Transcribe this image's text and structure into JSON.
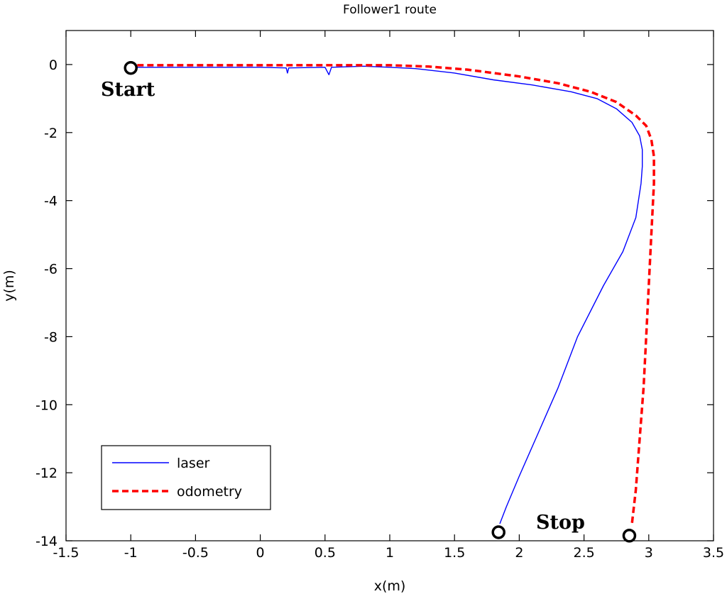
{
  "chart_data": {
    "type": "line",
    "title": "Follower1 route",
    "xlabel": "x(m)",
    "ylabel": "y(m)",
    "xlim": [
      -1.5,
      3.5
    ],
    "ylim": [
      -14,
      1
    ],
    "xticks": [
      -1.5,
      -1,
      -0.5,
      0,
      0.5,
      1,
      1.5,
      2,
      2.5,
      3,
      3.5
    ],
    "xtick_labels": [
      "-1.5",
      "-1",
      "-0.5",
      "0",
      "0.5",
      "1",
      "1.5",
      "2",
      "2.5",
      "3",
      "3.5"
    ],
    "yticks": [
      0,
      -2,
      -4,
      -6,
      -8,
      -10,
      -12,
      -14
    ],
    "ytick_labels": [
      "0",
      "-2",
      "-4",
      "-6",
      "-8",
      "-10",
      "-12",
      "-14"
    ],
    "grid": false,
    "legend": {
      "position": "bottom-left",
      "entries": [
        "laser",
        "odometry"
      ]
    },
    "series": [
      {
        "name": "laser",
        "color": "#0000ff",
        "style": "solid",
        "x": [
          -0.95,
          -0.5,
          0.0,
          0.2,
          0.21,
          0.22,
          0.5,
          0.53,
          0.55,
          0.8,
          1.0,
          1.2,
          1.5,
          1.8,
          2.1,
          2.4,
          2.6,
          2.75,
          2.87,
          2.93,
          2.95,
          2.95,
          2.94,
          2.9,
          2.8,
          2.65,
          2.45,
          2.3,
          2.15,
          2.0,
          1.9,
          1.85
        ],
        "y": [
          -0.08,
          -0.08,
          -0.08,
          -0.1,
          -0.25,
          -0.1,
          -0.08,
          -0.3,
          -0.08,
          -0.05,
          -0.08,
          -0.12,
          -0.25,
          -0.45,
          -0.6,
          -0.8,
          -1.0,
          -1.3,
          -1.7,
          -2.1,
          -2.5,
          -3.0,
          -3.5,
          -4.5,
          -5.5,
          -6.5,
          -8.0,
          -9.5,
          -10.8,
          -12.1,
          -13.0,
          -13.5
        ]
      },
      {
        "name": "odometry",
        "color": "#ff0000",
        "style": "dashed",
        "x": [
          -0.95,
          -0.5,
          0.0,
          0.5,
          1.0,
          1.3,
          1.6,
          2.0,
          2.3,
          2.55,
          2.75,
          2.9,
          2.98,
          3.02,
          3.04,
          3.04,
          3.02,
          3.0,
          2.98,
          2.96,
          2.93,
          2.9,
          2.87
        ],
        "y": [
          -0.02,
          -0.02,
          -0.02,
          -0.02,
          -0.02,
          -0.06,
          -0.15,
          -0.35,
          -0.55,
          -0.8,
          -1.1,
          -1.5,
          -1.8,
          -2.2,
          -2.7,
          -3.5,
          -5.0,
          -6.5,
          -8.0,
          -9.5,
          -11.0,
          -12.5,
          -13.5
        ]
      }
    ],
    "markers": [
      {
        "label": "Start",
        "x": -1.0,
        "y": -0.1
      },
      {
        "label": "Stop",
        "x": 1.84,
        "y": -13.75
      },
      {
        "label": "",
        "x": 2.85,
        "y": -13.85
      }
    ],
    "annotations": [
      "Start",
      "Stop"
    ]
  }
}
